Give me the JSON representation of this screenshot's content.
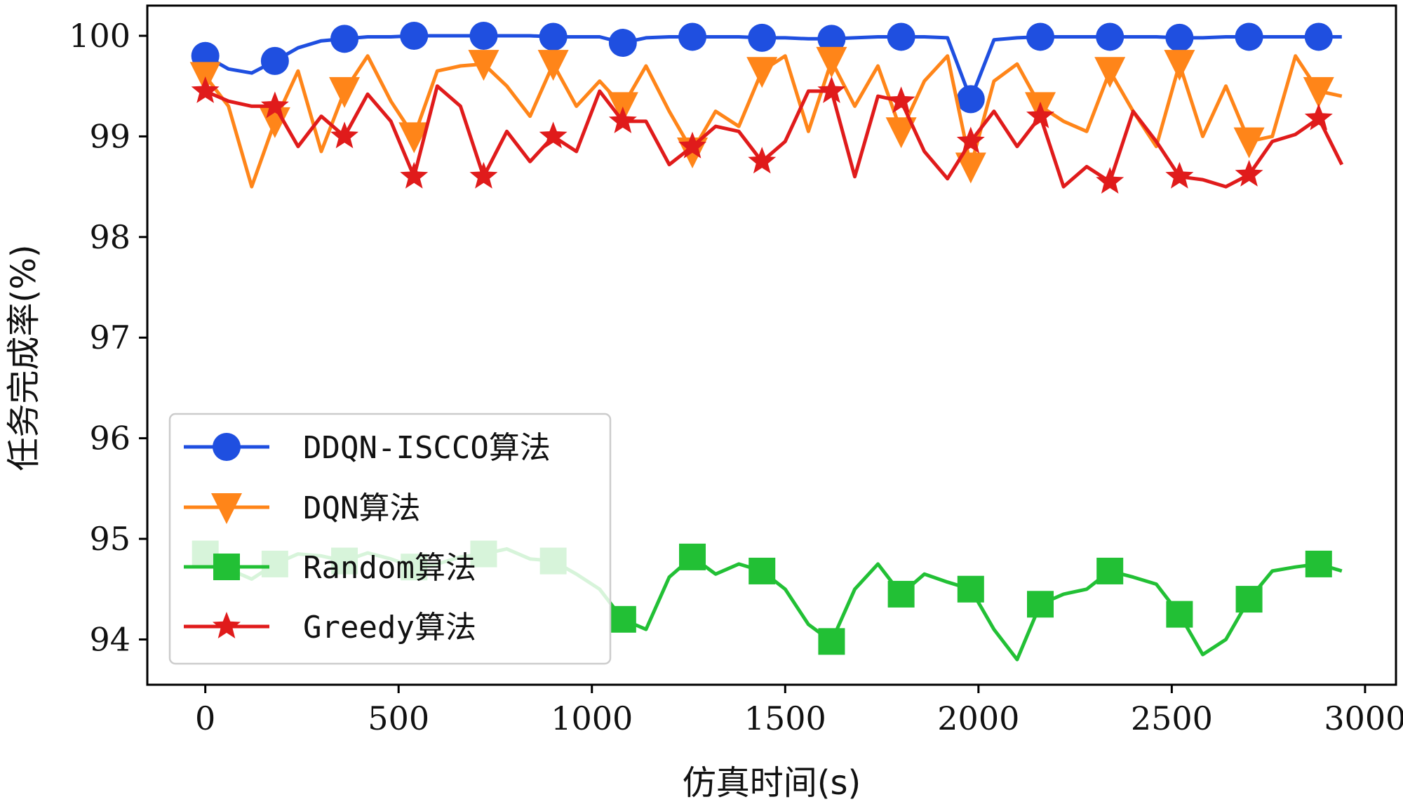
{
  "chart_data": {
    "type": "line",
    "title": "",
    "xlabel": "仿真时间(s)",
    "ylabel": "任务完成率(%)",
    "xlim": [
      -150,
      3080
    ],
    "ylim": [
      93.55,
      100.3
    ],
    "xticks": [
      0,
      500,
      1000,
      1500,
      2000,
      2500,
      3000
    ],
    "xtick_labels": [
      "0",
      "500",
      "1000",
      "1500",
      "2000",
      "2500",
      "3000"
    ],
    "yticks": [
      94,
      95,
      96,
      97,
      98,
      99,
      100
    ],
    "ytick_labels": [
      "94",
      "95",
      "96",
      "97",
      "98",
      "99",
      "100"
    ],
    "legend_position": "lower-left",
    "grid": false,
    "series": [
      {
        "name": "DDQN-ISCCO算法",
        "color": "#1f4fe0",
        "marker": "circle",
        "x": [
          0,
          60,
          120,
          180,
          240,
          300,
          360,
          420,
          480,
          540,
          600,
          660,
          720,
          780,
          840,
          900,
          960,
          1020,
          1080,
          1140,
          1200,
          1260,
          1320,
          1380,
          1440,
          1500,
          1560,
          1620,
          1680,
          1740,
          1800,
          1860,
          1920,
          1980,
          2040,
          2100,
          2160,
          2220,
          2280,
          2340,
          2400,
          2460,
          2520,
          2580,
          2640,
          2700,
          2760,
          2820,
          2880,
          2940
        ],
        "y": [
          99.8,
          99.67,
          99.63,
          99.75,
          99.88,
          99.95,
          99.97,
          99.99,
          99.99,
          100.0,
          100.0,
          100.0,
          100.0,
          100.0,
          100.0,
          99.99,
          99.99,
          99.99,
          99.93,
          99.98,
          99.99,
          99.99,
          99.99,
          99.99,
          99.98,
          99.98,
          99.97,
          99.97,
          99.98,
          99.99,
          99.99,
          99.99,
          99.98,
          99.37,
          99.96,
          99.98,
          99.99,
          99.99,
          99.99,
          99.99,
          99.99,
          99.99,
          99.98,
          99.98,
          99.99,
          99.99,
          99.99,
          99.99,
          99.99,
          99.99
        ],
        "marker_every": 3
      },
      {
        "name": "DQN算法",
        "color": "#ff8519",
        "marker": "triangle-down",
        "x": [
          0,
          60,
          120,
          180,
          240,
          300,
          360,
          420,
          480,
          540,
          600,
          660,
          720,
          780,
          840,
          900,
          960,
          1020,
          1080,
          1140,
          1200,
          1260,
          1320,
          1380,
          1440,
          1500,
          1560,
          1620,
          1680,
          1740,
          1800,
          1860,
          1920,
          1980,
          2040,
          2100,
          2160,
          2220,
          2280,
          2340,
          2400,
          2460,
          2520,
          2580,
          2640,
          2700,
          2760,
          2820,
          2880,
          2940
        ],
        "y": [
          99.6,
          99.3,
          98.5,
          99.15,
          99.65,
          98.85,
          99.45,
          99.8,
          99.35,
          99.0,
          99.65,
          99.7,
          99.72,
          99.5,
          99.2,
          99.72,
          99.3,
          99.55,
          99.3,
          99.7,
          99.25,
          98.85,
          99.25,
          99.1,
          99.65,
          99.8,
          99.05,
          99.75,
          99.3,
          99.7,
          99.05,
          99.55,
          99.8,
          98.7,
          99.55,
          99.72,
          99.3,
          99.15,
          99.05,
          99.65,
          99.25,
          98.9,
          99.72,
          99.0,
          99.5,
          98.95,
          99.0,
          99.8,
          99.45,
          99.4
        ],
        "marker_every": 3
      },
      {
        "name": "Random算法",
        "color": "#22c035",
        "marker": "square",
        "x": [
          0,
          60,
          120,
          180,
          240,
          300,
          360,
          420,
          480,
          540,
          600,
          660,
          720,
          780,
          840,
          900,
          960,
          1020,
          1080,
          1140,
          1200,
          1260,
          1320,
          1380,
          1440,
          1500,
          1560,
          1620,
          1680,
          1740,
          1800,
          1860,
          1920,
          1980,
          2040,
          2100,
          2160,
          2220,
          2280,
          2340,
          2400,
          2460,
          2520,
          2580,
          2640,
          2700,
          2760,
          2820,
          2880,
          2940
        ],
        "y": [
          94.85,
          94.7,
          94.6,
          94.75,
          94.85,
          94.83,
          94.78,
          94.86,
          94.8,
          94.72,
          94.75,
          94.82,
          94.85,
          94.9,
          94.8,
          94.78,
          94.65,
          94.5,
          94.2,
          94.1,
          94.62,
          94.82,
          94.65,
          94.75,
          94.68,
          94.5,
          94.15,
          93.98,
          94.5,
          94.75,
          94.45,
          94.65,
          94.57,
          94.5,
          94.1,
          93.8,
          94.35,
          94.45,
          94.5,
          94.68,
          94.62,
          94.55,
          94.25,
          93.85,
          94.0,
          94.4,
          94.68,
          94.72,
          94.75,
          94.68
        ],
        "marker_every": 3
      },
      {
        "name": "Greedy算法",
        "color": "#e01b1b",
        "marker": "star",
        "x": [
          0,
          60,
          120,
          180,
          240,
          300,
          360,
          420,
          480,
          540,
          600,
          660,
          720,
          780,
          840,
          900,
          960,
          1020,
          1080,
          1140,
          1200,
          1260,
          1320,
          1380,
          1440,
          1500,
          1560,
          1620,
          1680,
          1740,
          1800,
          1860,
          1920,
          1980,
          2040,
          2100,
          2160,
          2220,
          2280,
          2340,
          2400,
          2460,
          2520,
          2580,
          2640,
          2700,
          2760,
          2820,
          2880,
          2940
        ],
        "y": [
          99.45,
          99.35,
          99.3,
          99.3,
          98.9,
          99.2,
          99.0,
          99.42,
          99.15,
          98.6,
          99.5,
          99.3,
          98.6,
          99.05,
          98.75,
          99.0,
          98.85,
          99.45,
          99.15,
          99.15,
          98.72,
          98.9,
          99.1,
          99.05,
          98.75,
          98.95,
          99.45,
          99.45,
          98.6,
          99.4,
          99.35,
          98.85,
          98.58,
          98.95,
          99.25,
          98.9,
          99.2,
          98.5,
          98.7,
          98.55,
          99.25,
          98.95,
          98.6,
          98.57,
          98.5,
          98.62,
          98.95,
          99.02,
          99.18,
          98.72
        ],
        "marker_every": 3
      }
    ]
  }
}
